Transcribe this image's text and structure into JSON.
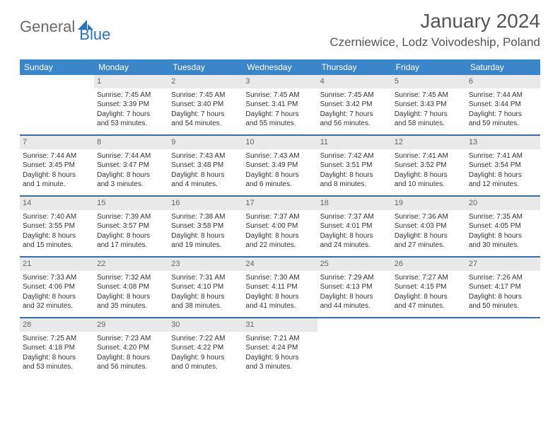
{
  "logo": {
    "text1": "General",
    "text2": "Blue",
    "fill": "#2a74bb",
    "gray": "#6a6a6a"
  },
  "title": "January 2024",
  "location": "Czerniewice, Lodz Voivodeship, Poland",
  "colors": {
    "header_bg": "#3a86c8",
    "header_text": "#ffffff",
    "daynum_bg": "#e9e9e9",
    "week_border": "#3a6ea5",
    "body_text": "#333333"
  },
  "day_names": [
    "Sunday",
    "Monday",
    "Tuesday",
    "Wednesday",
    "Thursday",
    "Friday",
    "Saturday"
  ],
  "weeks": [
    [
      {
        "n": "",
        "empty": true
      },
      {
        "n": "1",
        "sunrise": "Sunrise: 7:45 AM",
        "sunset": "Sunset: 3:39 PM",
        "dl1": "Daylight: 7 hours",
        "dl2": "and 53 minutes."
      },
      {
        "n": "2",
        "sunrise": "Sunrise: 7:45 AM",
        "sunset": "Sunset: 3:40 PM",
        "dl1": "Daylight: 7 hours",
        "dl2": "and 54 minutes."
      },
      {
        "n": "3",
        "sunrise": "Sunrise: 7:45 AM",
        "sunset": "Sunset: 3:41 PM",
        "dl1": "Daylight: 7 hours",
        "dl2": "and 55 minutes."
      },
      {
        "n": "4",
        "sunrise": "Sunrise: 7:45 AM",
        "sunset": "Sunset: 3:42 PM",
        "dl1": "Daylight: 7 hours",
        "dl2": "and 56 minutes."
      },
      {
        "n": "5",
        "sunrise": "Sunrise: 7:45 AM",
        "sunset": "Sunset: 3:43 PM",
        "dl1": "Daylight: 7 hours",
        "dl2": "and 58 minutes."
      },
      {
        "n": "6",
        "sunrise": "Sunrise: 7:44 AM",
        "sunset": "Sunset: 3:44 PM",
        "dl1": "Daylight: 7 hours",
        "dl2": "and 59 minutes."
      }
    ],
    [
      {
        "n": "7",
        "sunrise": "Sunrise: 7:44 AM",
        "sunset": "Sunset: 3:45 PM",
        "dl1": "Daylight: 8 hours",
        "dl2": "and 1 minute."
      },
      {
        "n": "8",
        "sunrise": "Sunrise: 7:44 AM",
        "sunset": "Sunset: 3:47 PM",
        "dl1": "Daylight: 8 hours",
        "dl2": "and 3 minutes."
      },
      {
        "n": "9",
        "sunrise": "Sunrise: 7:43 AM",
        "sunset": "Sunset: 3:48 PM",
        "dl1": "Daylight: 8 hours",
        "dl2": "and 4 minutes."
      },
      {
        "n": "10",
        "sunrise": "Sunrise: 7:43 AM",
        "sunset": "Sunset: 3:49 PM",
        "dl1": "Daylight: 8 hours",
        "dl2": "and 6 minutes."
      },
      {
        "n": "11",
        "sunrise": "Sunrise: 7:42 AM",
        "sunset": "Sunset: 3:51 PM",
        "dl1": "Daylight: 8 hours",
        "dl2": "and 8 minutes."
      },
      {
        "n": "12",
        "sunrise": "Sunrise: 7:41 AM",
        "sunset": "Sunset: 3:52 PM",
        "dl1": "Daylight: 8 hours",
        "dl2": "and 10 minutes."
      },
      {
        "n": "13",
        "sunrise": "Sunrise: 7:41 AM",
        "sunset": "Sunset: 3:54 PM",
        "dl1": "Daylight: 8 hours",
        "dl2": "and 12 minutes."
      }
    ],
    [
      {
        "n": "14",
        "sunrise": "Sunrise: 7:40 AM",
        "sunset": "Sunset: 3:55 PM",
        "dl1": "Daylight: 8 hours",
        "dl2": "and 15 minutes."
      },
      {
        "n": "15",
        "sunrise": "Sunrise: 7:39 AM",
        "sunset": "Sunset: 3:57 PM",
        "dl1": "Daylight: 8 hours",
        "dl2": "and 17 minutes."
      },
      {
        "n": "16",
        "sunrise": "Sunrise: 7:38 AM",
        "sunset": "Sunset: 3:58 PM",
        "dl1": "Daylight: 8 hours",
        "dl2": "and 19 minutes."
      },
      {
        "n": "17",
        "sunrise": "Sunrise: 7:37 AM",
        "sunset": "Sunset: 4:00 PM",
        "dl1": "Daylight: 8 hours",
        "dl2": "and 22 minutes."
      },
      {
        "n": "18",
        "sunrise": "Sunrise: 7:37 AM",
        "sunset": "Sunset: 4:01 PM",
        "dl1": "Daylight: 8 hours",
        "dl2": "and 24 minutes."
      },
      {
        "n": "19",
        "sunrise": "Sunrise: 7:36 AM",
        "sunset": "Sunset: 4:03 PM",
        "dl1": "Daylight: 8 hours",
        "dl2": "and 27 minutes."
      },
      {
        "n": "20",
        "sunrise": "Sunrise: 7:35 AM",
        "sunset": "Sunset: 4:05 PM",
        "dl1": "Daylight: 8 hours",
        "dl2": "and 30 minutes."
      }
    ],
    [
      {
        "n": "21",
        "sunrise": "Sunrise: 7:33 AM",
        "sunset": "Sunset: 4:06 PM",
        "dl1": "Daylight: 8 hours",
        "dl2": "and 32 minutes."
      },
      {
        "n": "22",
        "sunrise": "Sunrise: 7:32 AM",
        "sunset": "Sunset: 4:08 PM",
        "dl1": "Daylight: 8 hours",
        "dl2": "and 35 minutes."
      },
      {
        "n": "23",
        "sunrise": "Sunrise: 7:31 AM",
        "sunset": "Sunset: 4:10 PM",
        "dl1": "Daylight: 8 hours",
        "dl2": "and 38 minutes."
      },
      {
        "n": "24",
        "sunrise": "Sunrise: 7:30 AM",
        "sunset": "Sunset: 4:11 PM",
        "dl1": "Daylight: 8 hours",
        "dl2": "and 41 minutes."
      },
      {
        "n": "25",
        "sunrise": "Sunrise: 7:29 AM",
        "sunset": "Sunset: 4:13 PM",
        "dl1": "Daylight: 8 hours",
        "dl2": "and 44 minutes."
      },
      {
        "n": "26",
        "sunrise": "Sunrise: 7:27 AM",
        "sunset": "Sunset: 4:15 PM",
        "dl1": "Daylight: 8 hours",
        "dl2": "and 47 minutes."
      },
      {
        "n": "27",
        "sunrise": "Sunrise: 7:26 AM",
        "sunset": "Sunset: 4:17 PM",
        "dl1": "Daylight: 8 hours",
        "dl2": "and 50 minutes."
      }
    ],
    [
      {
        "n": "28",
        "sunrise": "Sunrise: 7:25 AM",
        "sunset": "Sunset: 4:18 PM",
        "dl1": "Daylight: 8 hours",
        "dl2": "and 53 minutes."
      },
      {
        "n": "29",
        "sunrise": "Sunrise: 7:23 AM",
        "sunset": "Sunset: 4:20 PM",
        "dl1": "Daylight: 8 hours",
        "dl2": "and 56 minutes."
      },
      {
        "n": "30",
        "sunrise": "Sunrise: 7:22 AM",
        "sunset": "Sunset: 4:22 PM",
        "dl1": "Daylight: 9 hours",
        "dl2": "and 0 minutes."
      },
      {
        "n": "31",
        "sunrise": "Sunrise: 7:21 AM",
        "sunset": "Sunset: 4:24 PM",
        "dl1": "Daylight: 9 hours",
        "dl2": "and 3 minutes."
      },
      {
        "n": "",
        "empty": true
      },
      {
        "n": "",
        "empty": true
      },
      {
        "n": "",
        "empty": true
      }
    ]
  ]
}
